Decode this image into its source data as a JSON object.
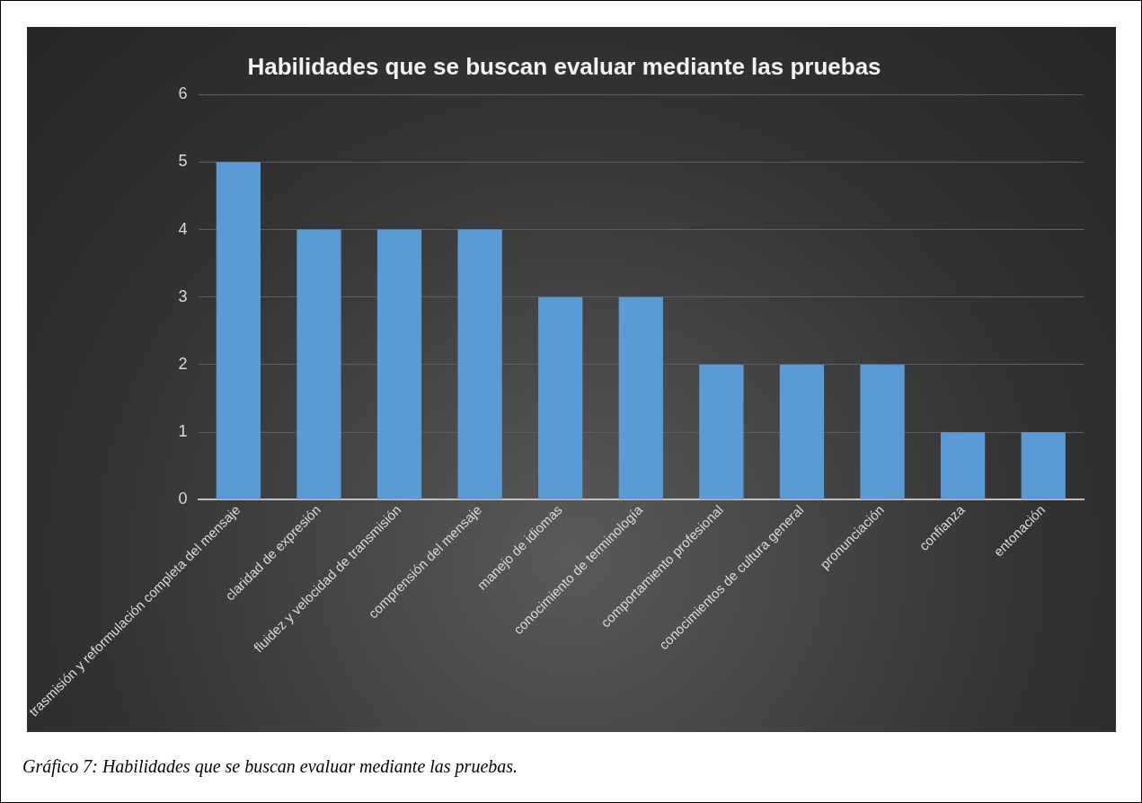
{
  "chart_data": {
    "type": "bar",
    "title": "Habilidades que se buscan evaluar mediante las pruebas",
    "categories": [
      "trasmisión y reformulación completa del mensaje",
      "claridad de expresión",
      "fluidez y velocidad de transmisión",
      "comprensión del mensaje",
      "manejo de idiomas",
      "conocimiento de terminología",
      "comportamiento profesional",
      "conocimientos de cultura general",
      "pronunciación",
      "confianza",
      "entonación"
    ],
    "values": [
      5,
      4,
      4,
      4,
      3,
      3,
      2,
      2,
      2,
      1,
      1
    ],
    "color": "#5b9bd5",
    "ylim": [
      0,
      6
    ],
    "yticks": [
      0,
      1,
      2,
      3,
      4,
      5,
      6
    ],
    "grid": "y",
    "legend": false,
    "annotations": [
      "Gráfico 7: Habilidades que se buscan evaluar mediante las pruebas."
    ]
  }
}
